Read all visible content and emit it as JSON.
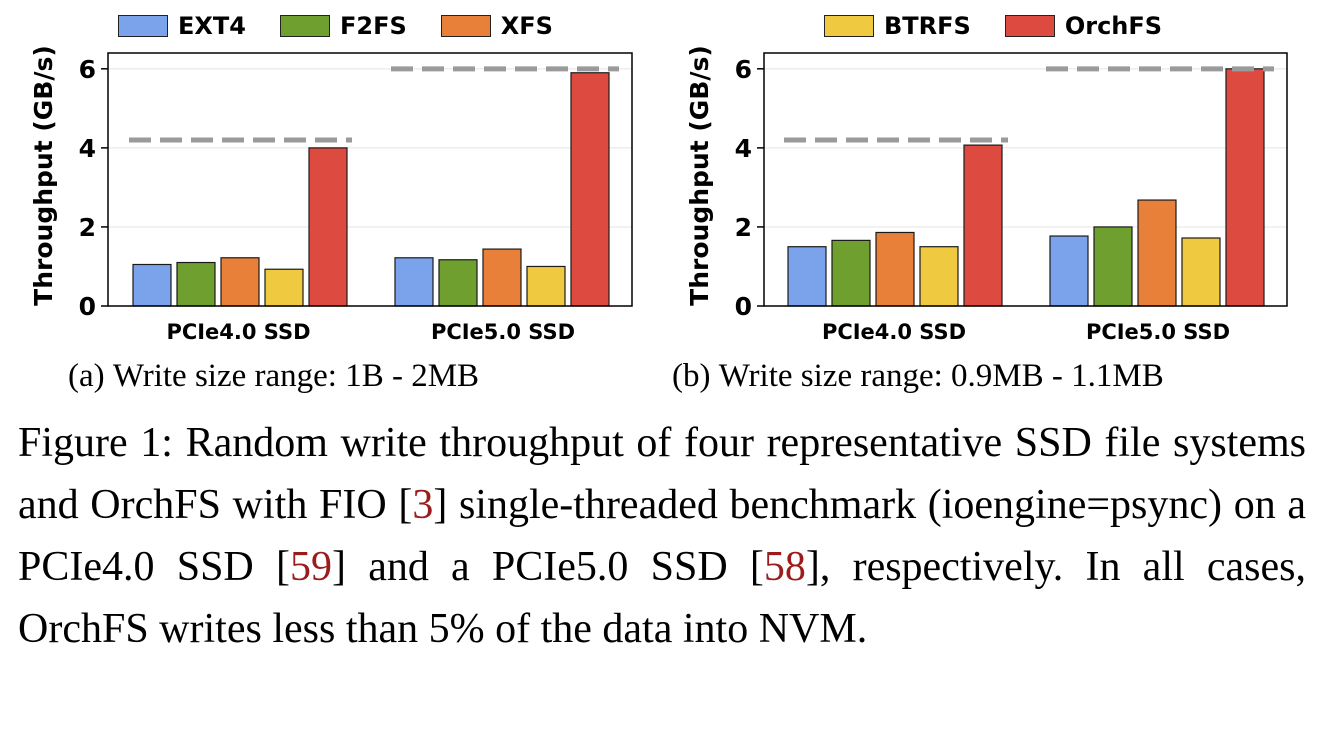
{
  "legend": {
    "left": [
      {
        "label": "EXT4",
        "color": "#7aa3ec"
      },
      {
        "label": "F2FS",
        "color": "#6f9f2e"
      },
      {
        "label": "XFS",
        "color": "#e8803a"
      }
    ],
    "right": [
      {
        "label": "BTRFS",
        "color": "#efc93f"
      },
      {
        "label": "OrchFS",
        "color": "#dd4b40"
      }
    ]
  },
  "chart_data": [
    {
      "type": "bar",
      "categories": [
        "PCIe4.0 SSD",
        "PCIe5.0 SSD"
      ],
      "series": [
        {
          "name": "EXT4",
          "color": "#7aa3ec",
          "values": [
            1.05,
            1.22
          ]
        },
        {
          "name": "F2FS",
          "color": "#6f9f2e",
          "values": [
            1.1,
            1.17
          ]
        },
        {
          "name": "XFS",
          "color": "#e8803a",
          "values": [
            1.22,
            1.44
          ]
        },
        {
          "name": "BTRFS",
          "color": "#efc93f",
          "values": [
            0.93,
            1.0
          ]
        },
        {
          "name": "OrchFS",
          "color": "#dd4b40",
          "values": [
            4.0,
            5.9
          ]
        }
      ],
      "reference_lines": [
        4.2,
        6.0
      ],
      "ylabel": "Throughput (GB/s)",
      "ylim": [
        0,
        6.4
      ],
      "yticks": [
        0,
        2,
        4,
        6
      ],
      "grid": "horizontal"
    },
    {
      "type": "bar",
      "categories": [
        "PCIe4.0 SSD",
        "PCIe5.0 SSD"
      ],
      "series": [
        {
          "name": "EXT4",
          "color": "#7aa3ec",
          "values": [
            1.5,
            1.77
          ]
        },
        {
          "name": "F2FS",
          "color": "#6f9f2e",
          "values": [
            1.66,
            2.0
          ]
        },
        {
          "name": "XFS",
          "color": "#e8803a",
          "values": [
            1.86,
            2.68
          ]
        },
        {
          "name": "BTRFS",
          "color": "#efc93f",
          "values": [
            1.5,
            1.72
          ]
        },
        {
          "name": "OrchFS",
          "color": "#dd4b40",
          "values": [
            4.07,
            6.0
          ]
        }
      ],
      "reference_lines": [
        4.2,
        6.0
      ],
      "ylabel": "Throughput (GB/s)",
      "ylim": [
        0,
        6.4
      ],
      "yticks": [
        0,
        2,
        4,
        6
      ],
      "grid": "horizontal"
    }
  ],
  "subcaptions": {
    "a_tag": "(a)",
    "a_text": "Write size range: 1B - 2MB",
    "b_tag": "(b)",
    "b_text": "Write size range: 0.9MB - 1.1MB"
  },
  "caption": {
    "part1": "Figure 1: Random write throughput of four representative SSD file systems and OrchFS with FIO [",
    "cite1": "3",
    "part2": "] single-threaded benchmark (ioengine=psync) on a PCIe4.0 SSD [",
    "cite2": "59",
    "part3": "] and a PCIe5.0 SSD [",
    "cite3": "58",
    "part4": "], respectively. In all cases, OrchFS writes less than 5% of the data into NVM."
  }
}
